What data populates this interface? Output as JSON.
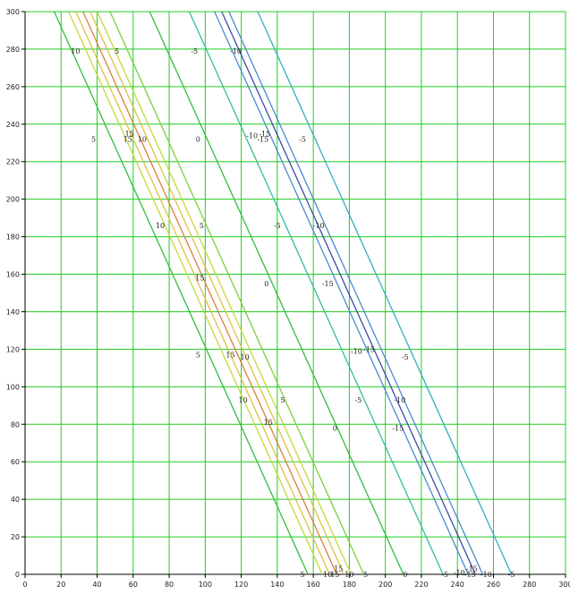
{
  "chart_data": {
    "type": "line",
    "title": "",
    "xlabel": "",
    "ylabel": "",
    "xlim": [
      0,
      300
    ],
    "ylim": [
      0,
      300
    ],
    "x_ticks": [
      0,
      20,
      40,
      60,
      80,
      100,
      120,
      140,
      160,
      180,
      200,
      220,
      240,
      260,
      280,
      300
    ],
    "y_ticks": [
      0,
      20,
      40,
      60,
      80,
      100,
      120,
      140,
      160,
      180,
      200,
      220,
      240,
      260,
      280,
      300
    ],
    "grid": true,
    "grid_color": "#22cc22",
    "slope": -2.13,
    "series": [
      {
        "x0": 157,
        "color": "#2fbf3a"
      },
      {
        "x0": 165,
        "color": "#c6d83a"
      },
      {
        "x0": 169,
        "color": "#e0c040"
      },
      {
        "x0": 173,
        "color": "#e07a3a"
      },
      {
        "x0": 177,
        "color": "#e0c040"
      },
      {
        "x0": 181,
        "color": "#c6d83a"
      },
      {
        "x0": 188,
        "color": "#7ad03a"
      },
      {
        "x0": 210,
        "color": "#2fbf3a"
      },
      {
        "x0": 232,
        "color": "#2fbf9a"
      },
      {
        "x0": 246,
        "color": "#4a8ad0"
      },
      {
        "x0": 250,
        "color": "#3a4ab0"
      },
      {
        "x0": 254,
        "color": "#4a8ad0"
      },
      {
        "x0": 270,
        "color": "#2fb0c0"
      }
    ],
    "contour_labels": [
      {
        "text": "10",
        "x": 28,
        "y": 279
      },
      {
        "text": "5",
        "x": 51,
        "y": 279
      },
      {
        "text": "-5",
        "x": 94,
        "y": 279
      },
      {
        "text": "-10",
        "x": 117,
        "y": 279
      },
      {
        "text": "5",
        "x": 38,
        "y": 232
      },
      {
        "text": "15",
        "x": 58,
        "y": 235
      },
      {
        "text": "15",
        "x": 57,
        "y": 232
      },
      {
        "text": "10",
        "x": 65,
        "y": 232
      },
      {
        "text": "0",
        "x": 96,
        "y": 232
      },
      {
        "text": "-10",
        "x": 126,
        "y": 234
      },
      {
        "text": "-15",
        "x": 133,
        "y": 235
      },
      {
        "text": "-15",
        "x": 132,
        "y": 232
      },
      {
        "text": "-5",
        "x": 154,
        "y": 232
      },
      {
        "text": "10",
        "x": 75,
        "y": 186
      },
      {
        "text": "5",
        "x": 98,
        "y": 186
      },
      {
        "text": "-5",
        "x": 140,
        "y": 186
      },
      {
        "text": "-10",
        "x": 163,
        "y": 186
      },
      {
        "text": "15",
        "x": 97,
        "y": 158
      },
      {
        "text": "0",
        "x": 134,
        "y": 155
      },
      {
        "text": "-15",
        "x": 168,
        "y": 155
      },
      {
        "text": "5",
        "x": 96,
        "y": 117
      },
      {
        "text": "15",
        "x": 114,
        "y": 117
      },
      {
        "text": "10",
        "x": 122,
        "y": 116
      },
      {
        "text": "-10",
        "x": 184,
        "y": 119
      },
      {
        "text": "-15",
        "x": 191,
        "y": 120
      },
      {
        "text": "-5",
        "x": 211,
        "y": 116
      },
      {
        "text": "10",
        "x": 121,
        "y": 93
      },
      {
        "text": "5",
        "x": 143,
        "y": 93
      },
      {
        "text": "-5",
        "x": 185,
        "y": 93
      },
      {
        "text": "-10",
        "x": 208,
        "y": 93
      },
      {
        "text": "15",
        "x": 135,
        "y": 81
      },
      {
        "text": "0",
        "x": 172,
        "y": 78
      },
      {
        "text": "-15",
        "x": 207,
        "y": 78
      },
      {
        "text": "5",
        "x": 154,
        "y": 0
      },
      {
        "text": "10",
        "x": 168,
        "y": 0
      },
      {
        "text": "15",
        "x": 172,
        "y": 0
      },
      {
        "text": "15",
        "x": 174,
        "y": 3
      },
      {
        "text": "10",
        "x": 180,
        "y": 0
      },
      {
        "text": "5",
        "x": 189,
        "y": 0
      },
      {
        "text": "0",
        "x": 211,
        "y": 0
      },
      {
        "text": "-5",
        "x": 233,
        "y": 0
      },
      {
        "text": "-10",
        "x": 241,
        "y": 1
      },
      {
        "text": "-15",
        "x": 248,
        "y": 3
      },
      {
        "text": "-15",
        "x": 247,
        "y": 0
      },
      {
        "text": "-10",
        "x": 256,
        "y": 0
      },
      {
        "text": "-5",
        "x": 270,
        "y": 0
      }
    ]
  }
}
